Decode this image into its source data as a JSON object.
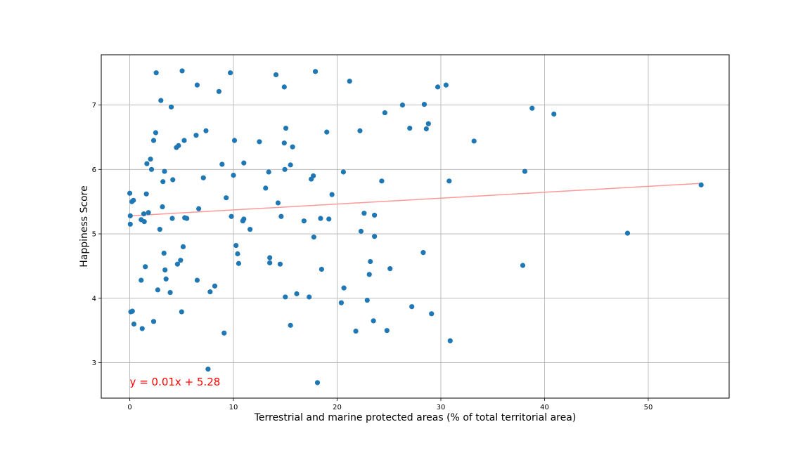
{
  "chart_data": {
    "type": "scatter",
    "title": "",
    "xlabel": "Terrestrial and marine protected areas (% of total territorial area)",
    "ylabel": "Happiness Score",
    "xlim": [
      -2.75,
      57.8
    ],
    "ylim": [
      2.45,
      7.78
    ],
    "x_ticks": [
      0,
      10,
      20,
      30,
      40,
      50
    ],
    "y_ticks": [
      3,
      4,
      5,
      6,
      7
    ],
    "grid": true,
    "point_color": "#1f77b4",
    "trendline": {
      "slope": 0.00914,
      "intercept": 5.28,
      "x_range": [
        0,
        55
      ],
      "color": "#ff9999"
    },
    "annotation": {
      "text": "y = 0.01x + 5.28",
      "color": "#ff0000",
      "x": 0,
      "y": 2.7
    },
    "points": [
      [
        0.0,
        5.63
      ],
      [
        0.05,
        5.28
      ],
      [
        0.05,
        5.15
      ],
      [
        0.2,
        5.5
      ],
      [
        0.35,
        5.52
      ],
      [
        0.1,
        3.79
      ],
      [
        0.25,
        3.8
      ],
      [
        0.4,
        3.6
      ],
      [
        1.1,
        5.22
      ],
      [
        1.35,
        5.31
      ],
      [
        1.4,
        5.19
      ],
      [
        1.5,
        4.49
      ],
      [
        1.6,
        5.62
      ],
      [
        1.65,
        6.09
      ],
      [
        1.8,
        5.33
      ],
      [
        2.0,
        6.16
      ],
      [
        2.1,
        6.0
      ],
      [
        2.3,
        6.45
      ],
      [
        2.5,
        6.57
      ],
      [
        2.55,
        7.5
      ],
      [
        2.7,
        4.13
      ],
      [
        2.9,
        5.07
      ],
      [
        3.0,
        7.07
      ],
      [
        3.15,
        5.42
      ],
      [
        3.2,
        5.81
      ],
      [
        3.3,
        4.7
      ],
      [
        3.35,
        5.97
      ],
      [
        3.4,
        4.44
      ],
      [
        3.5,
        4.3
      ],
      [
        3.9,
        4.09
      ],
      [
        4.0,
        6.97
      ],
      [
        4.1,
        5.24
      ],
      [
        4.15,
        5.84
      ],
      [
        4.5,
        6.34
      ],
      [
        4.6,
        4.53
      ],
      [
        4.7,
        6.37
      ],
      [
        4.9,
        4.59
      ],
      [
        5.0,
        3.79
      ],
      [
        5.05,
        7.53
      ],
      [
        5.15,
        4.8
      ],
      [
        5.25,
        6.45
      ],
      [
        5.3,
        5.25
      ],
      [
        5.5,
        5.24
      ],
      [
        1.1,
        4.28
      ],
      [
        1.2,
        3.53
      ],
      [
        2.3,
        3.64
      ],
      [
        6.4,
        6.53
      ],
      [
        6.5,
        4.28
      ],
      [
        6.5,
        7.31
      ],
      [
        6.65,
        5.39
      ],
      [
        7.1,
        5.87
      ],
      [
        7.35,
        6.6
      ],
      [
        7.55,
        2.9
      ],
      [
        7.75,
        4.1
      ],
      [
        8.2,
        4.19
      ],
      [
        8.6,
        7.21
      ],
      [
        8.9,
        6.08
      ],
      [
        9.1,
        3.46
      ],
      [
        9.3,
        5.56
      ],
      [
        9.7,
        7.5
      ],
      [
        9.8,
        5.27
      ],
      [
        10.0,
        5.91
      ],
      [
        10.1,
        6.45
      ],
      [
        10.25,
        4.82
      ],
      [
        10.4,
        4.69
      ],
      [
        10.5,
        4.54
      ],
      [
        10.9,
        5.2
      ],
      [
        11.0,
        5.23
      ],
      [
        11.0,
        6.1
      ],
      [
        11.6,
        5.07
      ],
      [
        12.5,
        6.43
      ],
      [
        13.1,
        5.71
      ],
      [
        13.4,
        5.96
      ],
      [
        13.5,
        4.55
      ],
      [
        13.5,
        4.63
      ],
      [
        14.1,
        7.47
      ],
      [
        14.3,
        5.48
      ],
      [
        14.5,
        4.53
      ],
      [
        14.6,
        5.27
      ],
      [
        14.9,
        7.28
      ],
      [
        14.9,
        6.41
      ],
      [
        14.95,
        6.0
      ],
      [
        15.0,
        4.02
      ],
      [
        15.05,
        6.64
      ],
      [
        15.5,
        3.58
      ],
      [
        15.5,
        6.07
      ],
      [
        15.7,
        6.35
      ],
      [
        16.1,
        4.07
      ],
      [
        16.8,
        5.2
      ],
      [
        17.3,
        4.02
      ],
      [
        17.5,
        5.85
      ],
      [
        17.7,
        5.9
      ],
      [
        17.75,
        4.95
      ],
      [
        17.9,
        7.52
      ],
      [
        18.1,
        2.69
      ],
      [
        18.4,
        5.24
      ],
      [
        18.5,
        4.45
      ],
      [
        19.0,
        6.58
      ],
      [
        19.2,
        5.23
      ],
      [
        19.5,
        5.61
      ],
      [
        20.4,
        3.93
      ],
      [
        20.6,
        5.96
      ],
      [
        20.65,
        4.16
      ],
      [
        21.2,
        7.37
      ],
      [
        21.8,
        3.49
      ],
      [
        22.2,
        6.6
      ],
      [
        22.3,
        5.04
      ],
      [
        22.6,
        5.32
      ],
      [
        22.9,
        3.97
      ],
      [
        23.1,
        4.37
      ],
      [
        23.2,
        4.57
      ],
      [
        23.5,
        3.65
      ],
      [
        23.6,
        5.29
      ],
      [
        23.6,
        4.96
      ],
      [
        24.3,
        5.82
      ],
      [
        24.6,
        6.88
      ],
      [
        24.8,
        3.5
      ],
      [
        25.1,
        4.46
      ],
      [
        26.3,
        7.0
      ],
      [
        27.0,
        6.64
      ],
      [
        27.2,
        3.87
      ],
      [
        28.3,
        4.71
      ],
      [
        28.4,
        7.01
      ],
      [
        28.6,
        6.63
      ],
      [
        28.8,
        6.71
      ],
      [
        29.1,
        3.76
      ],
      [
        29.7,
        7.28
      ],
      [
        30.5,
        7.31
      ],
      [
        30.8,
        5.82
      ],
      [
        30.9,
        3.34
      ],
      [
        33.2,
        6.44
      ],
      [
        37.9,
        4.51
      ],
      [
        38.1,
        5.97
      ],
      [
        38.8,
        6.95
      ],
      [
        40.9,
        6.86
      ],
      [
        48.0,
        5.01
      ],
      [
        55.1,
        5.76
      ]
    ]
  }
}
